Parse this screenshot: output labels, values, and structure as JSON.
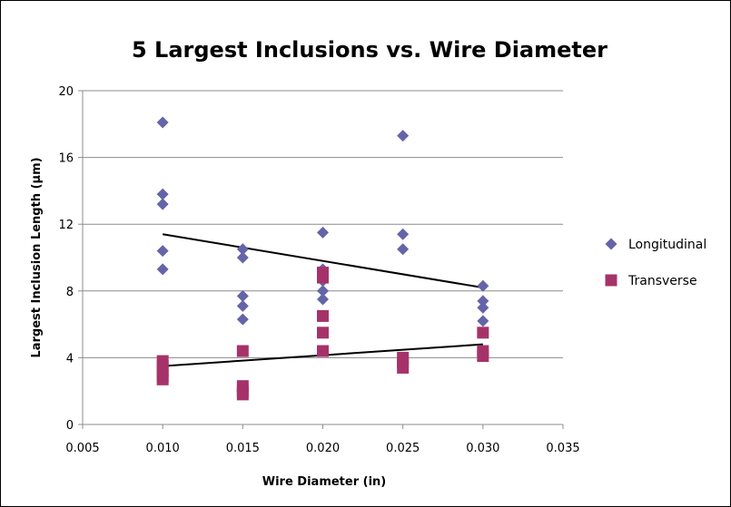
{
  "chart_data": {
    "type": "scatter",
    "title": "5 Largest Inclusions vs. Wire Diameter",
    "xlabel": "Wire Diameter (in)",
    "ylabel": "Largest Inclusion Length (µm)",
    "xlim": [
      0.005,
      0.035
    ],
    "ylim": [
      0,
      20
    ],
    "xticks": [
      0.005,
      0.01,
      0.015,
      0.02,
      0.025,
      0.03,
      0.035
    ],
    "xtick_labels": [
      "0.005",
      "0.010",
      "0.015",
      "0.020",
      "0.025",
      "0.030",
      "0.035"
    ],
    "yticks": [
      0,
      4,
      8,
      12,
      16,
      20
    ],
    "ytick_labels": [
      "0",
      "4",
      "8",
      "12",
      "16",
      "20"
    ],
    "grid": "horizontal",
    "legend": "right",
    "series": [
      {
        "name": "Longitudinal",
        "marker": "diamond",
        "color": "#6464A8",
        "points": [
          [
            0.01,
            18.1
          ],
          [
            0.01,
            13.8
          ],
          [
            0.01,
            13.2
          ],
          [
            0.01,
            10.4
          ],
          [
            0.01,
            9.3
          ],
          [
            0.015,
            10.5
          ],
          [
            0.015,
            10.0
          ],
          [
            0.015,
            7.7
          ],
          [
            0.015,
            7.1
          ],
          [
            0.015,
            6.3
          ],
          [
            0.02,
            11.5
          ],
          [
            0.02,
            9.3
          ],
          [
            0.02,
            8.6
          ],
          [
            0.02,
            8.0
          ],
          [
            0.02,
            7.5
          ],
          [
            0.025,
            17.3
          ],
          [
            0.025,
            11.4
          ],
          [
            0.025,
            10.5
          ],
          [
            0.03,
            8.3
          ],
          [
            0.03,
            7.4
          ],
          [
            0.03,
            7.0
          ],
          [
            0.03,
            6.2
          ]
        ],
        "trendline": [
          [
            0.01,
            11.4
          ],
          [
            0.03,
            8.2
          ]
        ]
      },
      {
        "name": "Transverse",
        "marker": "square",
        "color": "#A5336A",
        "points": [
          [
            0.01,
            3.8
          ],
          [
            0.01,
            3.5
          ],
          [
            0.01,
            3.2
          ],
          [
            0.01,
            2.9
          ],
          [
            0.01,
            2.7
          ],
          [
            0.015,
            4.4
          ],
          [
            0.015,
            2.3
          ],
          [
            0.015,
            2.0
          ],
          [
            0.015,
            1.8
          ],
          [
            0.02,
            9.1
          ],
          [
            0.02,
            8.8
          ],
          [
            0.02,
            6.5
          ],
          [
            0.02,
            5.5
          ],
          [
            0.02,
            4.4
          ],
          [
            0.025,
            4.0
          ],
          [
            0.025,
            3.7
          ],
          [
            0.025,
            3.4
          ],
          [
            0.03,
            5.5
          ],
          [
            0.03,
            4.4
          ],
          [
            0.03,
            4.1
          ]
        ],
        "trendline": [
          [
            0.01,
            3.5
          ],
          [
            0.03,
            4.8
          ]
        ]
      }
    ]
  }
}
